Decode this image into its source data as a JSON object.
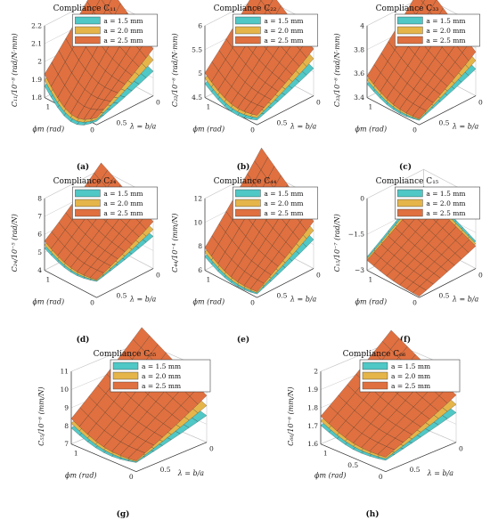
{
  "colors": {
    "a15": "#4fc8c6",
    "a20": "#e5b54a",
    "a25": "#e07040",
    "grid": "#c8c8c8",
    "mesh": "#2b2b2b"
  },
  "chart_data": [
    {
      "type": "surface3d",
      "caption": "(a)",
      "title": "Compliance C₁₁",
      "zlabel": "C₁₁/10⁻⁸ (rad/N·mm)",
      "xlabel": "ϕm (rad)",
      "ylabel": "λ = b/a",
      "zticks": [
        "1.8",
        "1.9",
        "2",
        "2.1",
        "2.2"
      ],
      "zlim": [
        1.8,
        2.2
      ],
      "xticks": [
        "1",
        "0"
      ],
      "yticks": [
        "0.5",
        "0"
      ],
      "legend": [
        "a = 1.5 mm",
        "a = 2.0 mm",
        "a = 2.5 mm"
      ],
      "series": [
        {
          "min": 1.82,
          "max": 2.0,
          "curv": 0.06,
          "dip": 0.1
        },
        {
          "min": 1.83,
          "max": 2.1,
          "curv": 0.07,
          "dip": 0.1
        },
        {
          "min": 1.84,
          "max": 2.2,
          "curv": 0.08,
          "dip": 0.1
        }
      ]
    },
    {
      "type": "surface3d",
      "caption": "(b)",
      "title": "Compliance C₂₂",
      "zlabel": "C₂₂/10⁻⁶ (rad/N·mm)",
      "xlabel": "ϕm (rad)",
      "ylabel": "λ = b/a",
      "zticks": [
        "4.5",
        "5",
        "5.5",
        "6"
      ],
      "zlim": [
        4.5,
        6.0
      ],
      "xticks": [
        "1",
        "0"
      ],
      "yticks": [
        "0.5",
        "0"
      ],
      "legend": [
        "a = 1.5 mm",
        "a = 2.0 mm",
        "a = 2.5 mm"
      ],
      "series": [
        {
          "min": 4.6,
          "max": 5.35,
          "curv": 0.2,
          "dip": 0.2
        },
        {
          "min": 4.65,
          "max": 5.65,
          "curv": 0.25,
          "dip": 0.2
        },
        {
          "min": 4.7,
          "max": 5.95,
          "curv": 0.3,
          "dip": 0.2
        }
      ]
    },
    {
      "type": "surface3d",
      "caption": "(c)",
      "title": "Compliance C₃₃",
      "zlabel": "C₃₃/10⁻⁶ (rad/N·mm)",
      "xlabel": "ϕm (rad)",
      "ylabel": "λ = b/a",
      "zticks": [
        "3.4",
        "3.6",
        "3.8",
        "4"
      ],
      "zlim": [
        3.3,
        4.1
      ],
      "xticks": [
        "1",
        "0"
      ],
      "yticks": [
        "0.5",
        "0"
      ],
      "legend": [
        "a = 1.5 mm",
        "a = 2.0 mm",
        "a = 2.5 mm"
      ],
      "series": [
        {
          "min": 3.35,
          "max": 3.75,
          "curv": 0.1,
          "dip": 0.08
        },
        {
          "min": 3.36,
          "max": 3.9,
          "curv": 0.12,
          "dip": 0.08
        },
        {
          "min": 3.37,
          "max": 4.05,
          "curv": 0.15,
          "dip": 0.08
        }
      ]
    },
    {
      "type": "surface3d",
      "caption": "(d)",
      "title": "Compliance C₂₄",
      "zlabel": "C₂₄/10⁻⁵ (rad/N)",
      "xlabel": "ϕm (rad)",
      "ylabel": "λ = b/a",
      "zticks": [
        "4",
        "5",
        "6",
        "7",
        "8"
      ],
      "zlim": [
        4.0,
        8.0
      ],
      "xticks": [
        "1",
        "0"
      ],
      "yticks": [
        "0.5",
        "0"
      ],
      "legend": [
        "a = 1.5 mm",
        "a = 2.0 mm",
        "a = 2.5 mm"
      ],
      "series": [
        {
          "min": 4.9,
          "max": 6.2,
          "curv": 0.6,
          "dip": 0.4
        },
        {
          "min": 4.95,
          "max": 6.8,
          "curv": 0.7,
          "dip": 0.4
        },
        {
          "min": 5.0,
          "max": 7.5,
          "curv": 0.8,
          "dip": 0.4
        }
      ]
    },
    {
      "type": "surface3d",
      "caption": "(e)",
      "title": "Compliance C₄₄",
      "zlabel": "C₄₄/10⁻⁴ (mm/N)",
      "xlabel": "ϕm (rad)",
      "ylabel": "λ = b/a",
      "zticks": [
        "6",
        "8",
        "10",
        "12"
      ],
      "zlim": [
        6.0,
        12.0
      ],
      "xticks": [
        "1",
        "0"
      ],
      "yticks": [
        "0.5",
        "0"
      ],
      "legend": [
        "a = 1.5 mm",
        "a = 2.0 mm",
        "a = 2.5 mm"
      ],
      "series": [
        {
          "min": 6.3,
          "max": 9.6,
          "curv": 1.0,
          "dip": 0.6
        },
        {
          "min": 6.4,
          "max": 10.8,
          "curv": 1.2,
          "dip": 0.6
        },
        {
          "min": 6.5,
          "max": 12.0,
          "curv": 1.4,
          "dip": 0.6
        }
      ]
    },
    {
      "type": "surface3d",
      "caption": "(f)",
      "title": "Compliance C₁₅",
      "zlabel": "C₁₅/10⁻⁷ (rad/N)",
      "xlabel": "ϕm (rad)",
      "ylabel": "λ = b/a",
      "zticks": [
        "−3",
        "−1.5",
        "0"
      ],
      "zlim": [
        -3.0,
        0.0
      ],
      "xticks": [
        "1",
        "0"
      ],
      "yticks": [
        "0.5",
        "0"
      ],
      "legend": [
        "a = 1.5 mm",
        "a = 2.0 mm",
        "a = 2.5 mm"
      ],
      "series": [
        {
          "min": -2.85,
          "max": -1.2,
          "curv": 0.3,
          "dip": 0.1
        },
        {
          "min": -2.9,
          "max": -1.35,
          "curv": 0.3,
          "dip": 0.1
        },
        {
          "min": -2.95,
          "max": -1.5,
          "curv": 0.3,
          "dip": 0.1
        }
      ]
    },
    {
      "type": "surface3d",
      "caption": "(g)",
      "title": "Compliance C₅₅",
      "zlabel": "C₅₅/10⁻⁶ (mm/N)",
      "xlabel": "ϕm (rad)",
      "ylabel": "λ = b/a",
      "zticks": [
        "7",
        "8",
        "9",
        "10",
        "11"
      ],
      "zlim": [
        7.0,
        11.0
      ],
      "xticks": [
        "1",
        "0"
      ],
      "yticks": [
        "0.5",
        "0"
      ],
      "legend": [
        "a = 1.5 mm",
        "a = 2.0 mm",
        "a = 2.5 mm"
      ],
      "series": [
        {
          "min": 7.5,
          "max": 9.0,
          "curv": 0.5,
          "dip": 0.4
        },
        {
          "min": 7.55,
          "max": 9.9,
          "curv": 0.6,
          "dip": 0.4
        },
        {
          "min": 7.6,
          "max": 10.8,
          "curv": 0.7,
          "dip": 0.4
        }
      ]
    },
    {
      "type": "surface3d",
      "caption": "(h)",
      "title": "Compliance C₆₆",
      "zlabel": "C₆₆/10⁻⁶ (mm/N)",
      "xlabel": "ϕm (rad)",
      "ylabel": "λ = b/a",
      "zticks": [
        "1.6",
        "1.7",
        "1.8",
        "1.9",
        "2"
      ],
      "zlim": [
        1.55,
        2.0
      ],
      "xticks": [
        "1",
        "0.5",
        "0"
      ],
      "yticks": [
        "0.5",
        "0"
      ],
      "legend": [
        "a = 1.5 mm",
        "a = 2.0 mm",
        "a = 2.5 mm"
      ],
      "series": [
        {
          "min": 1.62,
          "max": 1.8,
          "curv": 0.05,
          "dip": 0.04
        },
        {
          "min": 1.63,
          "max": 1.88,
          "curv": 0.06,
          "dip": 0.04
        },
        {
          "min": 1.64,
          "max": 1.97,
          "curv": 0.07,
          "dip": 0.04
        }
      ]
    }
  ]
}
